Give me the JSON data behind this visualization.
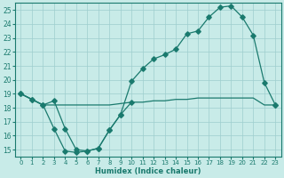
{
  "xlabel": "Humidex (Indice chaleur)",
  "bg_color": "#c8ebe8",
  "grid_color": "#9ecece",
  "line_color": "#1a7a6e",
  "xlim": [
    -0.5,
    23.5
  ],
  "ylim": [
    14.5,
    25.5
  ],
  "xticks": [
    0,
    1,
    2,
    3,
    4,
    5,
    6,
    7,
    8,
    9,
    10,
    11,
    12,
    13,
    14,
    15,
    16,
    17,
    18,
    19,
    20,
    21,
    22,
    23
  ],
  "yticks": [
    15,
    16,
    17,
    18,
    19,
    20,
    21,
    22,
    23,
    24,
    25
  ],
  "line_flat_x": [
    0,
    1,
    2,
    3,
    4,
    5,
    6,
    7,
    8,
    9,
    10,
    11,
    12,
    13,
    14,
    15,
    16,
    17,
    18,
    19,
    20,
    21,
    22,
    23
  ],
  "line_flat_y": [
    19.0,
    18.6,
    18.2,
    18.2,
    18.2,
    18.2,
    18.2,
    18.2,
    18.2,
    18.3,
    18.4,
    18.4,
    18.5,
    18.5,
    18.6,
    18.6,
    18.7,
    18.7,
    18.7,
    18.7,
    18.7,
    18.7,
    18.2,
    18.2
  ],
  "line_low_x": [
    0,
    1,
    2,
    3,
    4,
    5,
    6,
    7,
    8,
    9,
    10
  ],
  "line_low_y": [
    19.0,
    18.6,
    18.2,
    16.5,
    14.9,
    14.8,
    14.9,
    15.1,
    16.4,
    17.5,
    18.4
  ],
  "line_high_x": [
    0,
    1,
    2,
    3,
    4,
    5,
    6,
    7,
    8,
    9,
    10,
    11,
    12,
    13,
    14,
    15,
    16,
    17,
    18,
    19,
    20,
    21,
    22,
    23
  ],
  "line_high_y": [
    19.0,
    18.6,
    18.2,
    18.5,
    16.5,
    15.0,
    14.9,
    15.1,
    16.4,
    17.5,
    19.9,
    20.8,
    21.5,
    21.8,
    22.2,
    23.3,
    23.5,
    24.5,
    25.2,
    25.3,
    24.5,
    23.2,
    19.8,
    18.2
  ],
  "marker_flat_x": [
    0,
    1,
    2,
    10,
    23
  ],
  "marker_flat_y": [
    19.0,
    18.6,
    18.2,
    18.4,
    18.2
  ],
  "marker_low_x": [
    1,
    2,
    3,
    4,
    5,
    6,
    7,
    8,
    9
  ],
  "marker_low_y": [
    18.6,
    18.2,
    16.5,
    14.9,
    14.8,
    14.9,
    15.1,
    16.4,
    17.5
  ],
  "marker_high_x": [
    0,
    3,
    4,
    5,
    6,
    7,
    8,
    9,
    10,
    11,
    12,
    13,
    14,
    15,
    16,
    17,
    18,
    19,
    20,
    21,
    22,
    23
  ],
  "marker_high_y": [
    19.0,
    18.5,
    16.5,
    15.0,
    14.9,
    15.1,
    16.4,
    17.5,
    19.9,
    20.8,
    21.5,
    21.8,
    22.2,
    23.3,
    23.5,
    24.5,
    25.2,
    25.3,
    24.5,
    23.2,
    19.8,
    18.2
  ]
}
